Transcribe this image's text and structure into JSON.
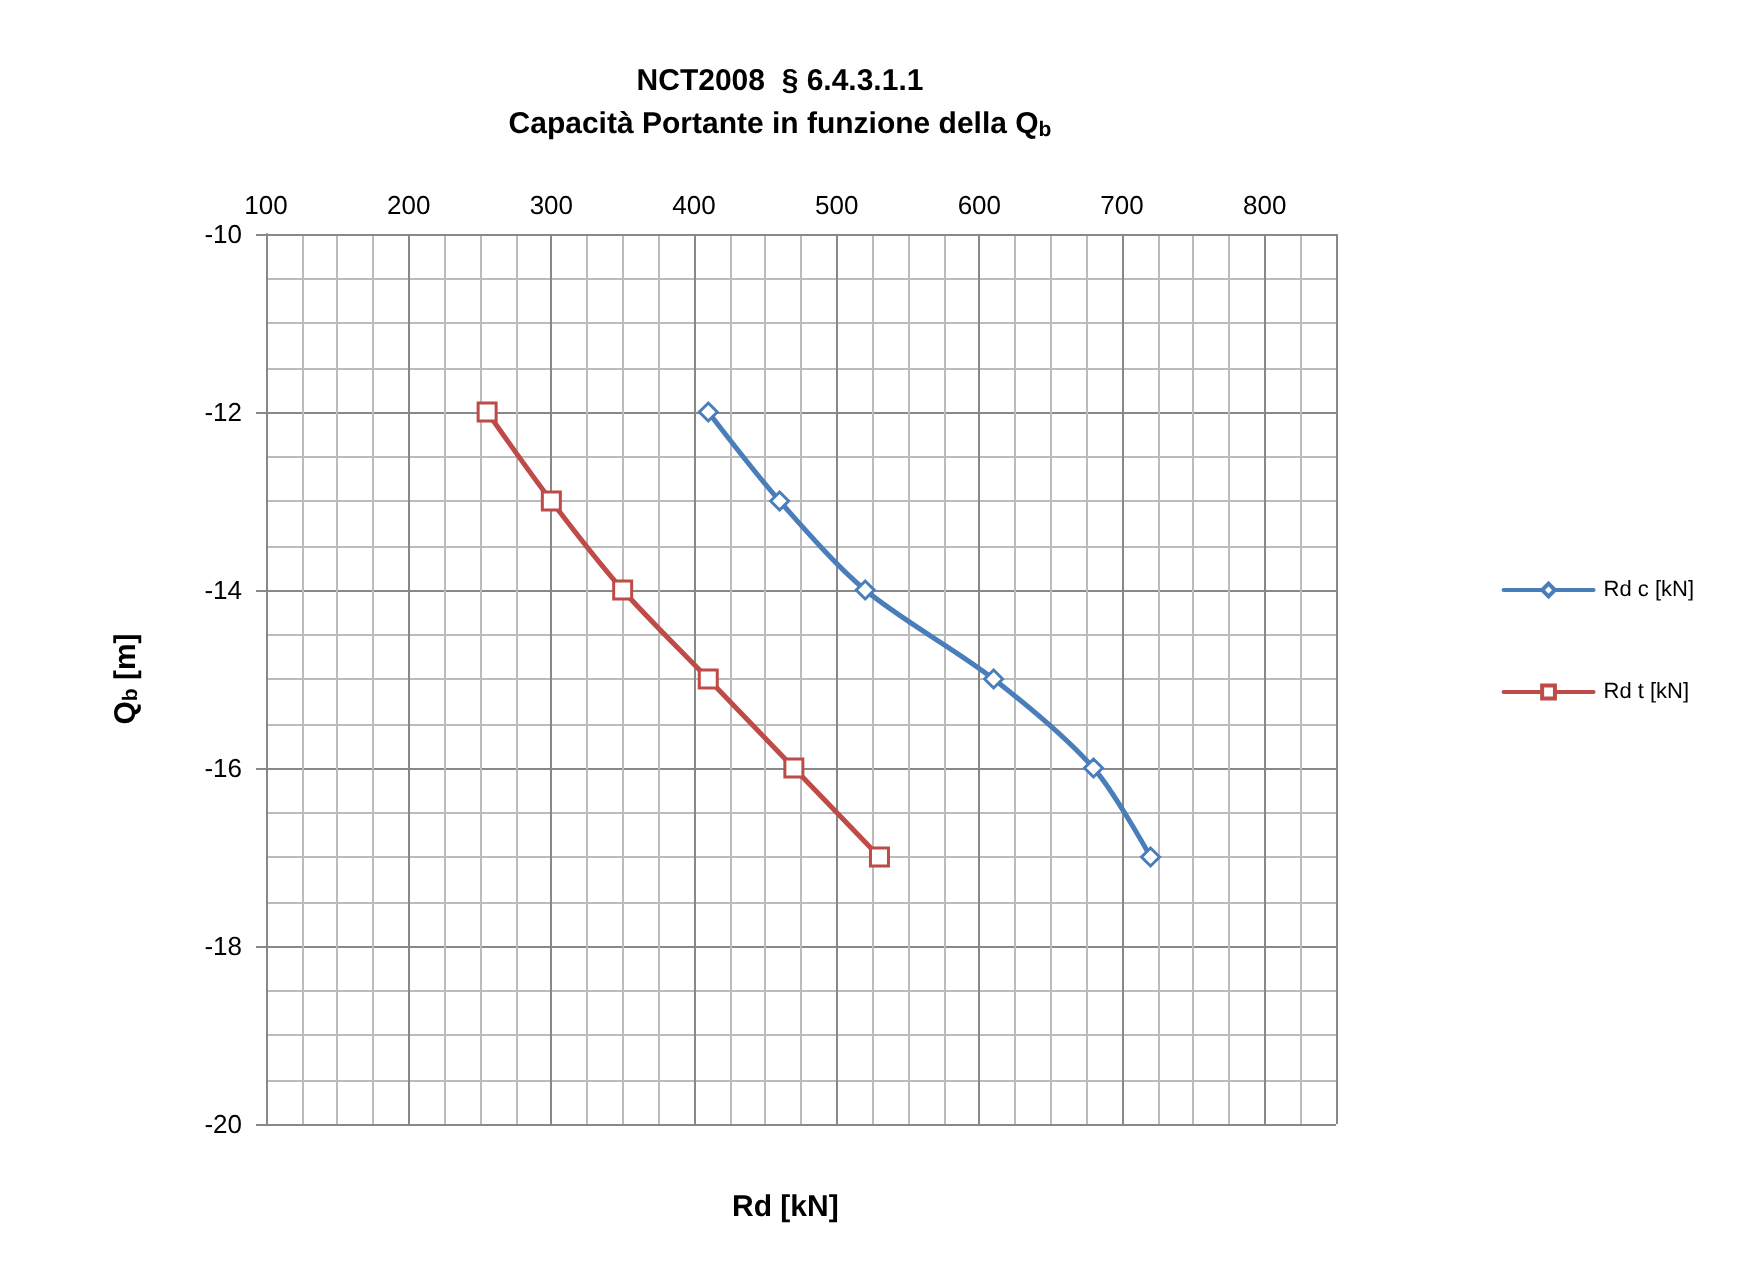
{
  "chart_data": {
    "type": "line",
    "title": "NCT2008  § 6.4.3.1.1",
    "subtitle": "Capacità Portante in funzione della Q$_{b}$",
    "xlabel": "Rd [kN]",
    "ylabel": "Q$_{b}$ [m]",
    "xlim": [
      100,
      850
    ],
    "xticks": [
      100,
      200,
      300,
      400,
      500,
      600,
      700,
      800
    ],
    "ylim": [
      -20,
      -10
    ],
    "yticks": [
      -20,
      -18,
      -16,
      -14,
      -12,
      -10
    ],
    "grid": true,
    "legend": "right",
    "line_style": "solid",
    "series": [
      {
        "name": "Rd c [kN]",
        "color": "#4a7ebb",
        "marker": "diamond",
        "x": [
          410,
          460,
          520,
          610,
          680,
          720
        ],
        "values": [
          -12,
          -13,
          -14,
          -15,
          -16,
          -17
        ]
      },
      {
        "name": "Rd t [kN]",
        "color": "#be4b48",
        "marker": "square",
        "x": [
          255,
          300,
          350,
          410,
          470,
          530
        ],
        "values": [
          -12,
          -13,
          -14,
          -15,
          -16,
          -17
        ]
      }
    ]
  }
}
